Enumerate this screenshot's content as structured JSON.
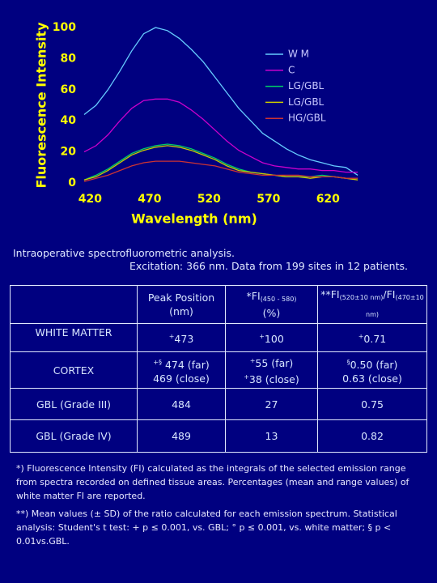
{
  "chart_data": {
    "type": "line",
    "xlabel": "Wavelength (nm)",
    "ylabel": "Fluorescence Intensity",
    "x": [
      415,
      425,
      435,
      445,
      455,
      465,
      475,
      485,
      495,
      505,
      515,
      525,
      535,
      545,
      555,
      565,
      575,
      585,
      595,
      605,
      615,
      625,
      635,
      645
    ],
    "series": [
      {
        "name": "W M",
        "color": "#66ccff",
        "values": [
          44,
          50,
          60,
          72,
          85,
          96,
          100,
          98,
          93,
          86,
          78,
          68,
          58,
          48,
          40,
          32,
          27,
          22,
          18,
          15,
          13,
          11,
          10,
          5
        ]
      },
      {
        "name": "C",
        "color": "#cc00cc",
        "values": [
          20,
          24,
          31,
          40,
          48,
          53,
          54,
          54,
          52,
          47,
          41,
          34,
          27,
          21,
          17,
          13,
          11,
          10,
          9,
          9,
          8,
          8,
          7,
          7
        ]
      },
      {
        "name": "LG/GBL",
        "color": "#00cc66",
        "values": [
          2,
          5,
          9,
          14,
          19,
          22,
          24,
          25,
          24,
          22,
          19,
          16,
          12,
          9,
          7,
          6,
          5,
          4,
          4,
          4,
          5,
          4,
          3,
          3
        ]
      },
      {
        "name": "LG/GBL",
        "color": "#cccc00",
        "values": [
          2,
          4,
          8,
          13,
          18,
          21,
          23,
          24,
          23,
          21,
          18,
          15,
          11,
          8,
          7,
          6,
          5,
          4,
          4,
          3,
          4,
          4,
          3,
          2
        ]
      },
      {
        "name": "HG/GBL",
        "color": "#cc3333",
        "values": [
          1,
          3,
          5,
          8,
          11,
          13,
          14,
          14,
          14,
          13,
          12,
          11,
          9,
          7,
          6,
          5,
          5,
          5,
          5,
          4,
          4,
          4,
          3,
          3
        ]
      }
    ],
    "xlim": [
      415,
      647
    ],
    "xticks": [
      420,
      470,
      520,
      570,
      620
    ],
    "ylim": [
      0,
      100
    ],
    "yticks": [
      0,
      20,
      40,
      60,
      80,
      100
    ],
    "legend": "upper-right"
  },
  "caption": [
    "Intraoperative spectrofluorometric analysis.",
    "Excitation: 366 nm. Data from 199 sites in 12 patients."
  ],
  "table": {
    "header": {
      "c1": [
        "Peak Position",
        "(nm)"
      ],
      "c2": {
        "a": "*FI",
        "a_sub": "(450 - 580)",
        "line2": "(%)"
      },
      "c3": {
        "a": "**FI",
        "a_sub": "(520±10 nm)",
        "b": "/FI",
        "b_sub": "(470±10 nm)"
      }
    },
    "rows": [
      {
        "label": "WHITE MATTER",
        "cells": [
          [
            {
              "sup": "+",
              "text": "473"
            }
          ],
          [
            {
              "sup": "+",
              "text": "100"
            }
          ],
          [
            {
              "sup": "+",
              "text": "0.71"
            }
          ]
        ]
      },
      {
        "label": "CORTEX",
        "cells": [
          [
            {
              "sup": "+§",
              "text": " 474 (far)"
            },
            {
              "sup": "",
              "text": "469 (close)"
            }
          ],
          [
            {
              "sup": "+",
              "text": "55 (far)"
            },
            {
              "sup": "+",
              "text": "38 (close)"
            }
          ],
          [
            {
              "sup": "§",
              "text": "0.50 (far)"
            },
            {
              "sup": "",
              "text": "0.63 (close)"
            }
          ]
        ]
      },
      {
        "label": "GBL (Grade III)",
        "cells": [
          [
            {
              "sup": "",
              "text": "484"
            }
          ],
          [
            {
              "sup": "",
              "text": "27"
            }
          ],
          [
            {
              "sup": "",
              "text": "0.75"
            }
          ]
        ]
      },
      {
        "label": "GBL (Grade IV)",
        "cells": [
          [
            {
              "sup": "",
              "text": "489"
            }
          ],
          [
            {
              "sup": "",
              "text": "13"
            }
          ],
          [
            {
              "sup": "",
              "text": "0.82"
            }
          ]
        ]
      }
    ]
  },
  "footnotes": [
    "*) Fluorescence Intensity (FI) calculated as the integrals of the selected emission range from spectra recorded on defined tissue areas. Percentages (mean and range values) of white matter FI are reported.",
    "**) Mean values (± SD) of the ratio calculated for each emission spectrum. Statistical analysis: Student's t test: + p ≤ 0.001, vs. GBL; ° p ≤ 0.001, vs. white matter; § p < 0.01vs.GBL."
  ]
}
